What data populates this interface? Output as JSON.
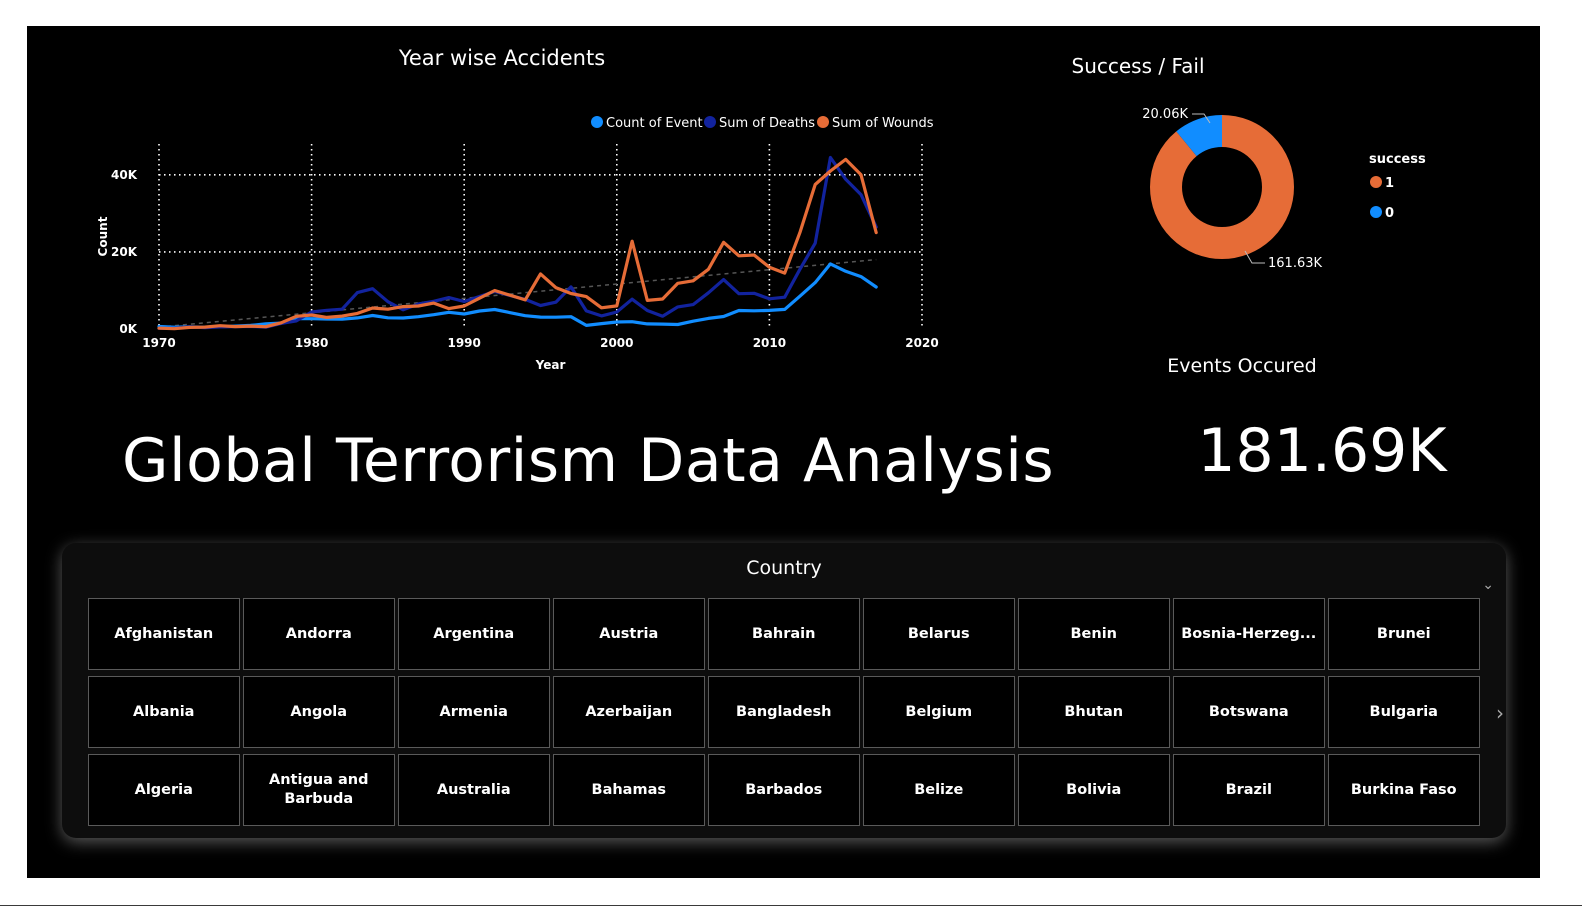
{
  "report": {
    "main_title": "Global Terrorism Data Analysis",
    "events_title": "Events Occured",
    "events_value": "181.69K"
  },
  "line_chart": {
    "title": "Year wise Accidents",
    "chart_data": {
      "type": "line",
      "title": "Year wise Accidents",
      "xlabel": "Year",
      "ylabel": "Count",
      "xlim": [
        1970,
        2020
      ],
      "ylim": [
        0,
        48000
      ],
      "x_ticks": [
        "1970",
        "1980",
        "1990",
        "2000",
        "2010",
        "2020"
      ],
      "y_ticks": [
        {
          "value": 0,
          "label": "0K"
        },
        {
          "value": 20000,
          "label": "20K"
        },
        {
          "value": 40000,
          "label": "40K"
        }
      ],
      "grid": true,
      "legend_position": "top-right",
      "x": [
        1970,
        1971,
        1972,
        1973,
        1974,
        1975,
        1976,
        1977,
        1978,
        1979,
        1980,
        1981,
        1982,
        1983,
        1984,
        1985,
        1986,
        1987,
        1988,
        1989,
        1990,
        1991,
        1992,
        1994,
        1995,
        1996,
        1997,
        1998,
        1999,
        2000,
        2001,
        2002,
        2003,
        2004,
        2005,
        2006,
        2007,
        2008,
        2009,
        2010,
        2011,
        2012,
        2013,
        2014,
        2015,
        2016,
        2017
      ],
      "series": [
        {
          "name": "Count of Event",
          "color": "#118dff",
          "values": [
            651,
            471,
            568,
            473,
            581,
            740,
            923,
            1319,
            1526,
            2662,
            2662,
            2586,
            2544,
            2870,
            3495,
            2915,
            2860,
            3183,
            3721,
            4324,
            3887,
            4683,
            5071,
            3456,
            3081,
            3058,
            3197,
            934,
            1395,
            1814,
            1906,
            1333,
            1278,
            1166,
            2017,
            2758,
            3242,
            4805,
            4721,
            4826,
            5076,
            8522,
            12036,
            16903,
            14965,
            13587,
            10900
          ]
        },
        {
          "name": "Sum of Deaths",
          "color": "#12239e",
          "values": [
            174,
            173,
            566,
            370,
            539,
            617,
            674,
            456,
            1459,
            2100,
            4400,
            4850,
            5136,
            9444,
            10450,
            7094,
            4976,
            6482,
            7189,
            8136,
            7148,
            8429,
            9742,
            7690,
            6103,
            6966,
            10924,
            4688,
            3393,
            4403,
            7729,
            4805,
            3317,
            5743,
            6331,
            9380,
            12824,
            9157,
            9273,
            7827,
            8246,
            15497,
            22273,
            44490,
            38853,
            34871,
            26445
          ]
        },
        {
          "name": "Sum of Wounds",
          "color": "#e66c37",
          "values": [
            212,
            82,
            409,
            495,
            865,
            617,
            755,
            587,
            1600,
            3298,
            3645,
            3000,
            3340,
            4047,
            5438,
            5130,
            5814,
            5965,
            6720,
            5282,
            5965,
            8000,
            9978,
            7562,
            14286,
            10744,
            9200,
            8400,
            5500,
            6000,
            22774,
            7428,
            7786,
            11855,
            12500,
            15500,
            22500,
            19000,
            19200,
            16000,
            14500,
            25000,
            37500,
            41000,
            44000,
            40000,
            25000
          ]
        }
      ],
      "trend_line": {
        "from": [
          1970,
          500
        ],
        "to": [
          2017,
          18000
        ]
      }
    }
  },
  "donut_chart": {
    "title": "Success / Fail",
    "chart_data": {
      "type": "pie",
      "title": "Success / Fail",
      "legend_title": "success",
      "legend_position": "right",
      "slices": [
        {
          "label": "1",
          "value": 161630,
          "display": "161.63K",
          "color": "#e66c37"
        },
        {
          "label": "0",
          "value": 20060,
          "display": "20.06K",
          "color": "#118dff"
        }
      ]
    }
  },
  "slicer": {
    "title": "Country",
    "countries": [
      "Afghanistan",
      "Andorra",
      "Argentina",
      "Austria",
      "Bahrain",
      "Belarus",
      "Benin",
      "Bosnia-Herzeg...",
      "Brunei",
      "Albania",
      "Angola",
      "Armenia",
      "Azerbaijan",
      "Bangladesh",
      "Belgium",
      "Bhutan",
      "Botswana",
      "Bulgaria",
      "Algeria",
      "Antigua and Barbuda",
      "Australia",
      "Bahamas",
      "Barbados",
      "Belize",
      "Bolivia",
      "Brazil",
      "Burkina Faso"
    ],
    "chevron_icon": "chevron-down-icon",
    "next_icon": "chevron-right-icon"
  }
}
